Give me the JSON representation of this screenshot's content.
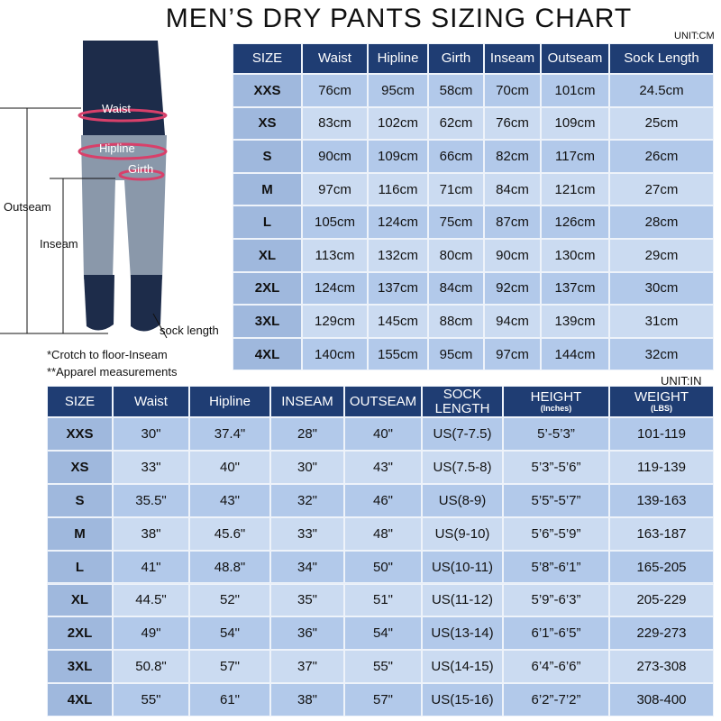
{
  "header": {
    "title": "MEN’S DRY PANTS SIZING CHART"
  },
  "figure": {
    "labels": {
      "waist": "Waist",
      "hipline": "Hipline",
      "girth": "Girth",
      "outseam": "Outseam",
      "inseam": "Inseam",
      "sock": "sock length"
    },
    "notes": [
      "*Crotch to floor-Inseam",
      "**Apparel measurements"
    ]
  },
  "table1": {
    "unit": "UNIT:CM",
    "headers": [
      "SIZE",
      "Waist",
      "Hipline",
      "Girth",
      "Inseam",
      "Outseam",
      "Sock Length"
    ],
    "rows": [
      [
        "XXS",
        "76cm",
        "95cm",
        "58cm",
        "70cm",
        "101cm",
        "24.5cm"
      ],
      [
        "XS",
        "83cm",
        "102cm",
        "62cm",
        "76cm",
        "109cm",
        "25cm"
      ],
      [
        "S",
        "90cm",
        "109cm",
        "66cm",
        "82cm",
        "117cm",
        "26cm"
      ],
      [
        "M",
        "97cm",
        "116cm",
        "71cm",
        "84cm",
        "121cm",
        "27cm"
      ],
      [
        "L",
        "105cm",
        "124cm",
        "75cm",
        "87cm",
        "126cm",
        "28cm"
      ],
      [
        "XL",
        "113cm",
        "132cm",
        "80cm",
        "90cm",
        "130cm",
        "29cm"
      ],
      [
        "2XL",
        "124cm",
        "137cm",
        "84cm",
        "92cm",
        "137cm",
        "30cm"
      ],
      [
        "3XL",
        "129cm",
        "145cm",
        "88cm",
        "94cm",
        "139cm",
        "31cm"
      ],
      [
        "4XL",
        "140cm",
        "155cm",
        "95cm",
        "97cm",
        "144cm",
        "32cm"
      ]
    ]
  },
  "table2": {
    "unit": "UNIT:IN",
    "headers": [
      "SIZE",
      "Waist",
      "Hipline",
      "INSEAM",
      "OUTSEAM",
      "SOCK LENGTH",
      "HEIGHT",
      "WEIGHT"
    ],
    "header_notes": {
      "6": "(Inches)",
      "7": "(LBS)"
    },
    "rows": [
      [
        "XXS",
        "30\"",
        "37.4\"",
        "28\"",
        "40\"",
        "US(7-7.5)",
        "5’-5’3”",
        "101-119"
      ],
      [
        "XS",
        "33\"",
        "40\"",
        "30\"",
        "43\"",
        "US(7.5-8)",
        "5’3”-5’6”",
        "119-139"
      ],
      [
        "S",
        "35.5\"",
        "43\"",
        "32\"",
        "46\"",
        "US(8-9)",
        "5’5”-5’7”",
        "139-163"
      ],
      [
        "M",
        "38\"",
        "45.6\"",
        "33\"",
        "48\"",
        "US(9-10)",
        "5’6”-5’9”",
        "163-187"
      ],
      [
        "L",
        "41\"",
        "48.8\"",
        "34\"",
        "50\"",
        "US(10-11)",
        "5’8”-6’1”",
        "165-205"
      ],
      [
        "XL",
        "44.5\"",
        "52\"",
        "35\"",
        "51\"",
        "US(11-12)",
        "5’9”-6’3”",
        "205-229"
      ],
      [
        "2XL",
        "49\"",
        "54\"",
        "36\"",
        "54\"",
        "US(13-14)",
        "6’1”-6’5”",
        "229-273"
      ],
      [
        "3XL",
        "50.8\"",
        "57\"",
        "37\"",
        "55\"",
        "US(14-15)",
        "6’4”-6’6”",
        "273-308"
      ],
      [
        "4XL",
        "55\"",
        "61\"",
        "38\"",
        "57\"",
        "US(15-16)",
        "6’2”-7’2”",
        "308-400"
      ]
    ]
  }
}
